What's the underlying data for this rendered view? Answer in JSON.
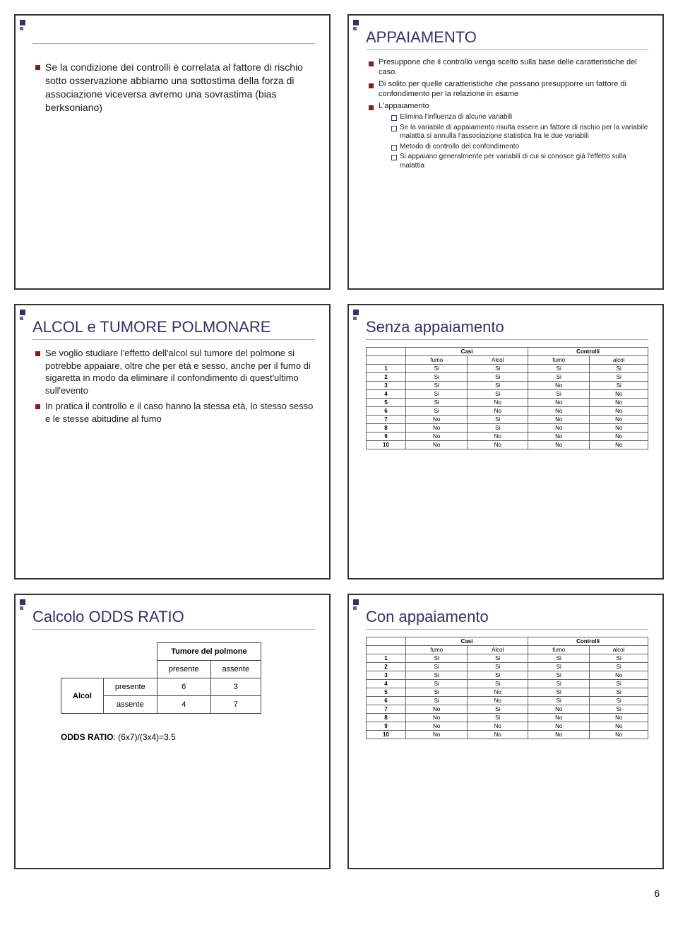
{
  "slide1": {
    "bullets": [
      "Se la condizione dei controlli è correlata al fattore di rischio sotto osservazione abbiamo una sottostima della forza di associazione viceversa avremo una sovrastima (bias berksoniano)"
    ]
  },
  "slide2": {
    "title": "APPAIAMENTO",
    "b1": "Presuppone che il controllo venga scelto sulla base delle caratteristiche del caso.",
    "b2": "Di solito per quelle caratteristiche che possano presupporre un fattore di confondimento per la relazione in esame",
    "b3": "L'appaiamento",
    "sub": [
      "Elimina l'influenza di alcune variabili",
      "Se la variabile di appaiamento risulta essere un fattore di rischio per la variabile malattia si annulla l'associazione statistica fra le due variabili",
      "Metodo di controllo del confondimento",
      "Si appaiano generalmente per variabili di cui si conosce già l'effetto sulla malattia"
    ]
  },
  "slide3": {
    "title": "ALCOL e TUMORE POLMONARE",
    "b1": "Se voglio studiare l'effetto dell'alcol sul tumore del polmone si potrebbe appaiare, oltre che per età e sesso, anche per il fumo di sigaretta in modo da eliminare il confondimento di quest'ultimo sull'evento",
    "b2": "In pratica il controllo e il caso hanno la stessa età, lo stesso sesso e le stesse abitudine al fumo"
  },
  "slide4": {
    "title": "Senza appaiamento",
    "grp1": "Casi",
    "grp2": "Controlli",
    "cols": [
      "fumo",
      "Alcol",
      "fumo",
      "alcol"
    ],
    "rows": [
      [
        "1",
        "Si",
        "Si",
        "Si",
        "Si"
      ],
      [
        "2",
        "Si",
        "Si",
        "Si",
        "Si"
      ],
      [
        "3",
        "Si",
        "Si",
        "No",
        "Si"
      ],
      [
        "4",
        "Si",
        "Si",
        "Si",
        "No"
      ],
      [
        "5",
        "Si",
        "No",
        "No",
        "No"
      ],
      [
        "6",
        "Si",
        "No",
        "No",
        "No"
      ],
      [
        "7",
        "No",
        "Si",
        "No",
        "No"
      ],
      [
        "8",
        "No",
        "Si",
        "No",
        "No"
      ],
      [
        "9",
        "No",
        "No",
        "No",
        "No"
      ],
      [
        "10",
        "No",
        "No",
        "No",
        "No"
      ]
    ]
  },
  "slide5": {
    "title": "Calcolo ODDS RATIO",
    "colgroup": "Tumore del polmone",
    "rowgroup": "Alcol",
    "col1": "presente",
    "col2": "assente",
    "row1": "presente",
    "row2": "assente",
    "a": "6",
    "b": "3",
    "c": "4",
    "d": "7",
    "odds_label": "ODDS RATIO",
    "odds_formula": ": (6x7)/(3x4)=3.5"
  },
  "slide6": {
    "title": "Con appaiamento",
    "grp1": "Casi",
    "grp2": "Controlli",
    "cols": [
      "fumo",
      "Alcol",
      "fumo",
      "alcol"
    ],
    "rows": [
      [
        "1",
        "Si",
        "Si",
        "Si",
        "Si"
      ],
      [
        "2",
        "Si",
        "Si",
        "Si",
        "Si"
      ],
      [
        "3",
        "Si",
        "Si",
        "Si",
        "No"
      ],
      [
        "4",
        "Si",
        "Si",
        "Si",
        "Si"
      ],
      [
        "5",
        "Si",
        "No",
        "Si",
        "Si"
      ],
      [
        "6",
        "Si",
        "No",
        "Si",
        "Si"
      ],
      [
        "7",
        "No",
        "Si",
        "No",
        "Si"
      ],
      [
        "8",
        "No",
        "Si",
        "No",
        "No"
      ],
      [
        "9",
        "No",
        "No",
        "No",
        "No"
      ],
      [
        "10",
        "No",
        "No",
        "No",
        "No"
      ]
    ]
  },
  "page_number": "6"
}
